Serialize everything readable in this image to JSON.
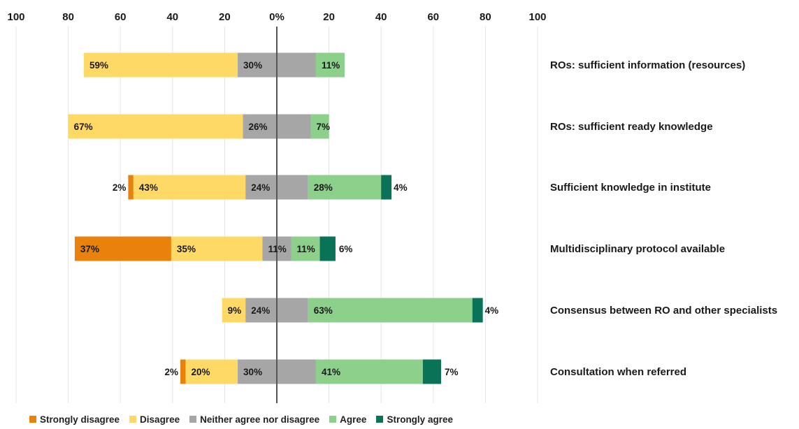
{
  "chart_data": {
    "type": "bar",
    "orientation": "horizontal",
    "stacked": true,
    "diverging": true,
    "title": "",
    "xlabel": "",
    "ylabel": "",
    "xlim": [
      -100,
      100
    ],
    "x_ticks": [
      "100",
      "80",
      "60",
      "40",
      "20",
      "0%",
      "20",
      "40",
      "60",
      "80",
      "100"
    ],
    "x_tick_values": [
      -100,
      -80,
      -60,
      -40,
      -20,
      0,
      20,
      40,
      60,
      80,
      100
    ],
    "grid": true,
    "legend_position": "bottom",
    "categories": [
      "ROs: sufficient information (resources)",
      "ROs: sufficient ready knowledge",
      "Sufficient knowledge in institute",
      "Multidisciplinary protocol available",
      "Consensus between RO and other specialists",
      "Consultation when referred"
    ],
    "series": [
      {
        "name": "Strongly disagree",
        "color": "#E8820C",
        "values": [
          0,
          0,
          2,
          37,
          0,
          2
        ],
        "labels": [
          "",
          "",
          "2%",
          "37%",
          "",
          "2%"
        ]
      },
      {
        "name": "Disagree",
        "color": "#FFD966",
        "values": [
          59,
          67,
          43,
          35,
          9,
          20
        ],
        "labels": [
          "59%",
          "67%",
          "43%",
          "35%",
          "9%",
          "20%"
        ]
      },
      {
        "name": "Neither agree nor disagree",
        "color": "#A6A6A6",
        "values": [
          30,
          26,
          24,
          11,
          24,
          30
        ],
        "labels": [
          "30%",
          "26%",
          "24%",
          "11%",
          "24%",
          "30%"
        ]
      },
      {
        "name": "Agree",
        "color": "#8CD08C",
        "values": [
          11,
          7,
          28,
          11,
          63,
          41
        ],
        "labels": [
          "11%",
          "7%",
          "28%",
          "11%",
          "63%",
          "41%"
        ]
      },
      {
        "name": "Strongly agree",
        "color": "#0A7257",
        "values": [
          0,
          0,
          4,
          6,
          4,
          7
        ],
        "labels": [
          "",
          "",
          "4%",
          "6%",
          "4%",
          "7%"
        ]
      }
    ]
  }
}
